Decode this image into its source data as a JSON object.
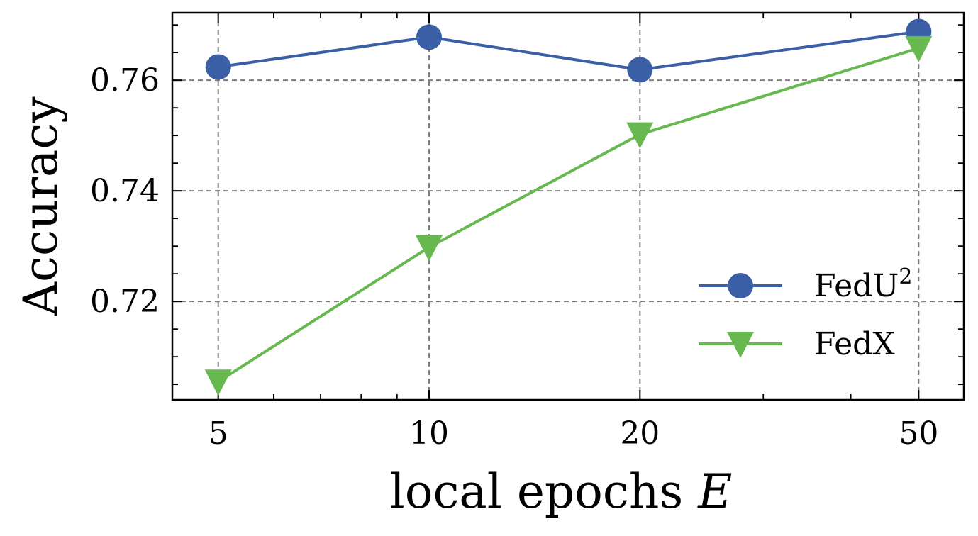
{
  "chart_data": {
    "type": "line",
    "xlabel": "local epochs",
    "xlabel_var": "E",
    "ylabel": "Accuracy",
    "x_scale": "log",
    "x": [
      5,
      10,
      20,
      50
    ],
    "x_tick_labels": [
      "5",
      "10",
      "20",
      "50"
    ],
    "xlim": [
      4.3,
      58
    ],
    "ylim": [
      0.7022,
      0.7722
    ],
    "y_ticks": [
      0.72,
      0.74,
      0.76
    ],
    "y_tick_labels": [
      "0.72",
      "0.74",
      "0.76"
    ],
    "grid": true,
    "legend_position": "lower-right",
    "series": [
      {
        "name": "FedU",
        "name_sup": "2",
        "color": "#3a5fa6",
        "marker": "circle",
        "values": [
          0.7624,
          0.7678,
          0.7619,
          0.7688
        ]
      },
      {
        "name": "FedX",
        "color": "#66b84f",
        "marker": "triangle-down",
        "values": [
          0.7055,
          0.7298,
          0.7502,
          0.7658
        ]
      }
    ]
  }
}
